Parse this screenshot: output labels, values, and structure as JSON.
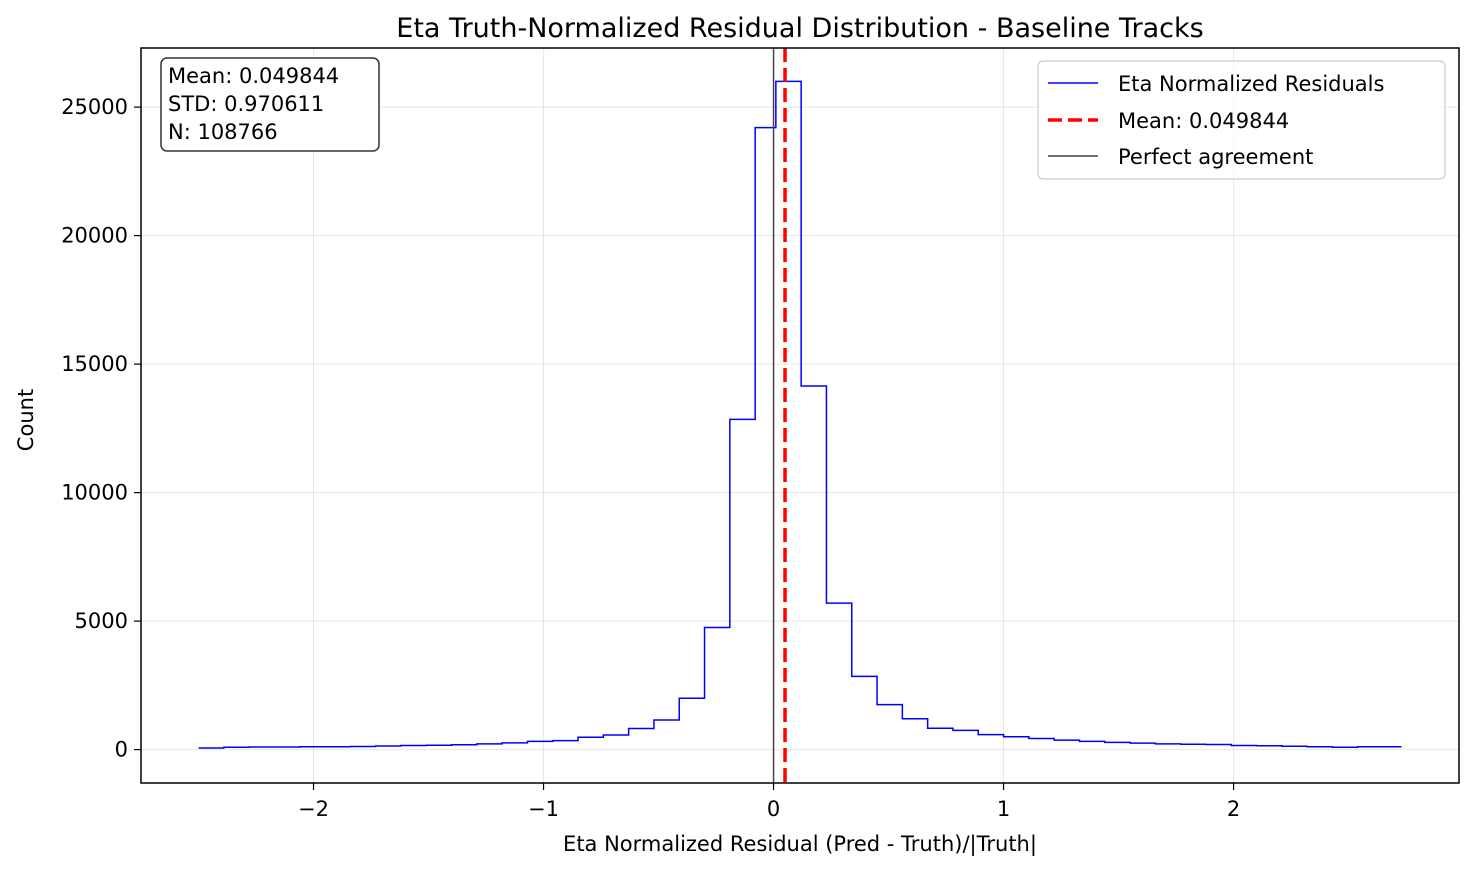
{
  "chart_data": {
    "type": "histogram",
    "title": "Eta Truth-Normalized Residual Distribution - Baseline Tracks",
    "xlabel": "Eta Normalized Residual (Pred - Truth)/|Truth|",
    "ylabel": "Count",
    "xlim": [
      -2.75,
      2.98
    ],
    "ylim": [
      -1300,
      27300
    ],
    "x_ticks": [
      -2,
      -1,
      0,
      1,
      2
    ],
    "x_tick_labels": [
      "−2",
      "−1",
      "0",
      "1",
      "2"
    ],
    "y_ticks": [
      0,
      5000,
      10000,
      15000,
      20000,
      25000
    ],
    "y_tick_labels": [
      "0",
      "5000",
      "10000",
      "15000",
      "20000",
      "25000"
    ],
    "grid": true,
    "bin_edges": [
      -2.5,
      -2.39,
      -2.28,
      -2.17,
      -2.06,
      -1.95,
      -1.84,
      -1.73,
      -1.62,
      -1.51,
      -1.4,
      -1.29,
      -1.18,
      -1.07,
      -0.96,
      -0.85,
      -0.74,
      -0.63,
      -0.52,
      -0.41,
      -0.3,
      -0.19,
      -0.08,
      0.01,
      0.12,
      0.23,
      0.34,
      0.45,
      0.56,
      0.67,
      0.78,
      0.89,
      1.0,
      1.11,
      1.22,
      1.33,
      1.44,
      1.55,
      1.66,
      1.77,
      1.88,
      1.99,
      2.1,
      2.21,
      2.32,
      2.43,
      2.54,
      2.73
    ],
    "counts": [
      60,
      90,
      100,
      100,
      110,
      110,
      120,
      140,
      160,
      170,
      190,
      220,
      260,
      320,
      350,
      480,
      570,
      820,
      1150,
      2000,
      4750,
      12850,
      24200,
      26000,
      14150,
      5700,
      2850,
      1750,
      1200,
      830,
      750,
      580,
      500,
      430,
      370,
      320,
      280,
      250,
      220,
      210,
      200,
      160,
      150,
      130,
      110,
      90,
      110
    ],
    "series": [
      {
        "name": "Eta Normalized Residuals",
        "color": "#0000ff"
      }
    ],
    "mean_line": {
      "x": 0.049844,
      "label": "Mean: 0.049844",
      "color": "#ff0000"
    },
    "reference_line": {
      "x": 0,
      "label": "Perfect agreement",
      "color": "#444444"
    },
    "legend_position": "upper right",
    "stats_box": {
      "mean": "Mean: 0.049844",
      "std": "STD: 0.970611",
      "n": "N: 108766"
    }
  }
}
